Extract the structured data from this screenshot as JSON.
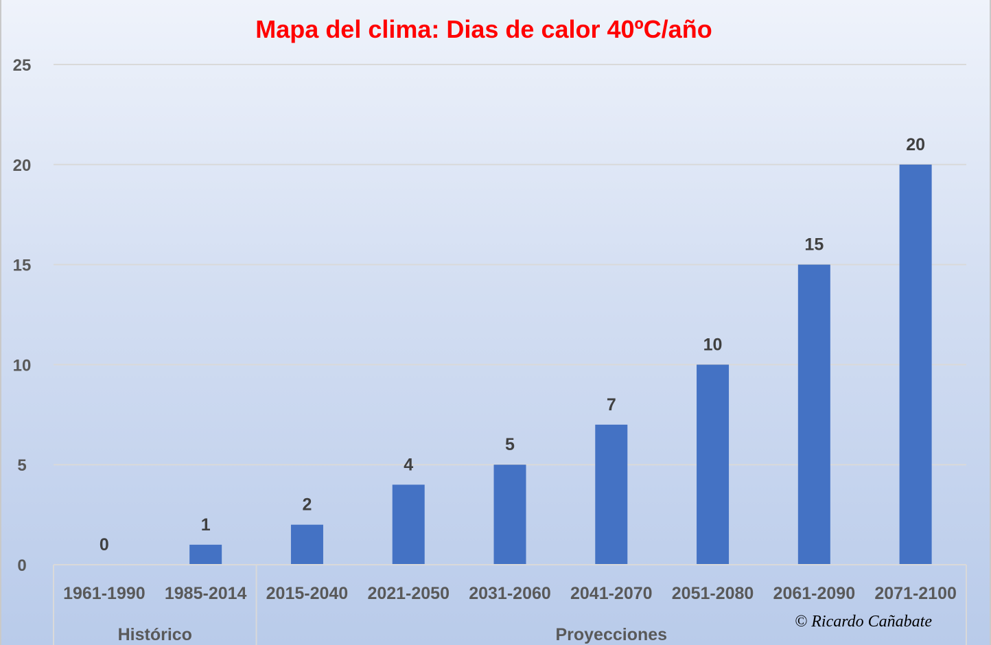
{
  "chart_data": {
    "type": "bar",
    "title": "Mapa del clima: Dias de calor 40ºC/año",
    "categories": [
      "1961-1990",
      "1985-2014",
      "2015-2040",
      "2021-2050",
      "2031-2060",
      "2041-2070",
      "2051-2080",
      "2061-2090",
      "2071-2100"
    ],
    "values": [
      0,
      1,
      2,
      4,
      5,
      7,
      10,
      15,
      20
    ],
    "data_labels": [
      "0",
      "1",
      "2",
      "4",
      "5",
      "7",
      "10",
      "15",
      "20"
    ],
    "groups": [
      {
        "label": "Histórico",
        "count": 2
      },
      {
        "label": "Proyecciones",
        "count": 7
      }
    ],
    "ylim": [
      0,
      25
    ],
    "yticks": [
      "0",
      "5",
      "10",
      "15",
      "20",
      "25"
    ],
    "grid": true,
    "legend": "none",
    "bar_color": "#4472c4",
    "credit": "© Ricardo Cañabate"
  }
}
